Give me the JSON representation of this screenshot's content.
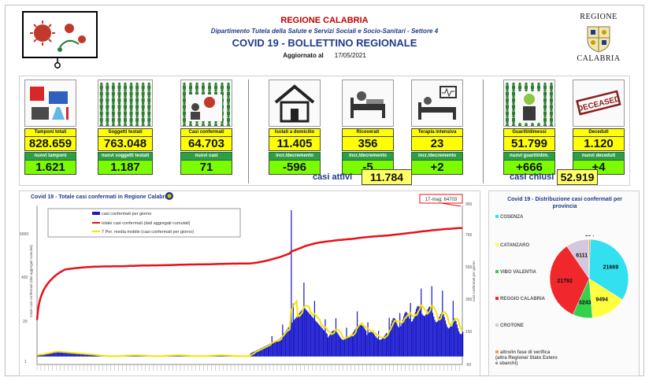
{
  "header": {
    "region": "REGIONE CALABRIA",
    "department": "Dipartimento Tutela della Salute e Servizi Sociali e Socio-Sanitari - Settore 4",
    "bulletin": "COVID 19 - BOLLETTINO REGIONALE",
    "updated_label": "Aggiornato al",
    "updated_date": "17/05/2021",
    "logo_top": "REGIONE",
    "logo_bottom": "CALABRIA"
  },
  "cards": [
    {
      "label": "Tamponi totali",
      "value": "828.659",
      "delta_label": "nuovi tamponi",
      "delta": "1.621",
      "icon": "lab-icon"
    },
    {
      "label": "Soggetti testati",
      "value": "763.048",
      "delta_label": "nuovi soggetti testati",
      "delta": "1.187",
      "icon": "people-grid-icon"
    },
    {
      "label": "Casi confermati",
      "value": "64.703",
      "delta_label": "nuovi casi",
      "delta": "71",
      "icon": "virus-person-icon"
    },
    {
      "label": "Isolati a domicilio",
      "value": "11.405",
      "delta_label": "incr./decremento",
      "delta": "-596",
      "icon": "house-icon"
    },
    {
      "label": "Ricoverati",
      "value": "356",
      "delta_label": "incr./decremento",
      "delta": "-5",
      "icon": "hospital-bed-icon"
    },
    {
      "label": "Terapia intensiva",
      "value": "23",
      "delta_label": "incr./decremento",
      "delta": "+2",
      "icon": "icu-icon"
    },
    {
      "label": "Guariti/dimessi",
      "value": "51.799",
      "delta_label": "nuovi guariti/dim.",
      "delta": "+666",
      "icon": "recovered-icon"
    },
    {
      "label": "Deceduti",
      "value": "1.120",
      "delta_label": "nuovi deceduti",
      "delta": "+4",
      "icon": "deceased-stamp-icon",
      "stamp_text": "DECEASED"
    }
  ],
  "summary": {
    "active_label": "casi attivi",
    "active_value": "11.784",
    "closed_label": "casi chiusi",
    "closed_value": "52.919"
  },
  "chart_data": [
    {
      "type": "bar",
      "title": "Covid 19 - Totale casi confermati in Regione Calabria",
      "legend": [
        "casi confermati per giorno",
        "totale casi confermati (dati aggregati cumulati)",
        "7 Per. media mobile (casi confermati per giorno)"
      ],
      "colors": {
        "daily": "#1a1acc",
        "cumulative": "#e8101a",
        "moving_avg": "#f2e600"
      },
      "ylabel_left": "totale casi confermati (dati aggregati cumulati)",
      "ylabel_right": "casi confermati per giorno",
      "left_ticks": [
        "1",
        "20",
        "400",
        "6000"
      ],
      "right_ticks": [
        "-50",
        "150",
        "350",
        "550",
        "750",
        "950"
      ],
      "callout": "17-mag; 64703",
      "grid": false,
      "legend_position": "top-left"
    },
    {
      "type": "pie",
      "title": "Covid 19 - Distribuzione casi confermati per provincia",
      "slices": [
        {
          "name": "COSENZA",
          "value": 21669,
          "color": "#33e0f0"
        },
        {
          "name": "CATANZARO",
          "value": 9494,
          "color": "#ffff40"
        },
        {
          "name": "VIBO VALENTIA",
          "value": 5243,
          "color": "#33d24a"
        },
        {
          "name": "REGGIO CALABRIA",
          "value": 21792,
          "color": "#f0282c"
        },
        {
          "name": "CROTONE",
          "value": 6111,
          "color": "#d6c8dc"
        },
        {
          "name": "altro/in fase di verifica (altra Regione/ Stato Estero e sbarchi)",
          "value": 394,
          "color": "#f2a33a"
        }
      ]
    }
  ]
}
